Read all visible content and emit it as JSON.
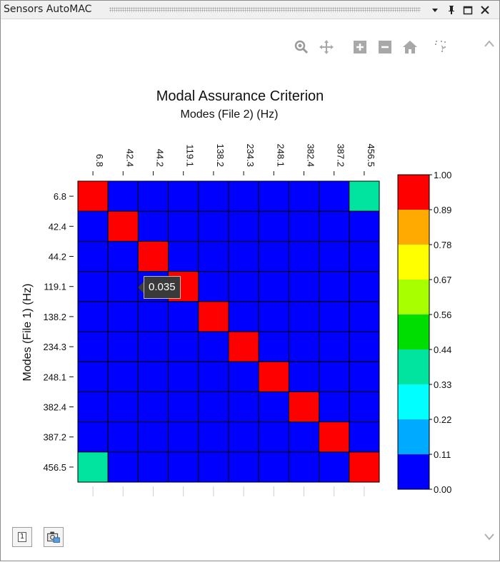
{
  "window": {
    "title": "Sensors AutoMAC",
    "buttons": [
      "dropdown-icon",
      "pin-icon",
      "maximize-icon",
      "close-icon"
    ]
  },
  "toolbar": {
    "icons": [
      "zoom-icon",
      "pan-icon",
      "zoom-in-icon",
      "zoom-out-icon",
      "home-icon",
      "select-icon"
    ]
  },
  "tooltip": {
    "text": "0.035"
  },
  "bottom_buttons": {
    "page_label": "1"
  },
  "colors": {
    "low": "#0000ff",
    "high": "#ff0000",
    "scale": [
      "#0000ff",
      "#00aaff",
      "#00ffff",
      "#00e4a0",
      "#00dd00",
      "#a8ff00",
      "#ffff00",
      "#ffaa00",
      "#ffa800",
      "#ff0000"
    ]
  },
  "chart_data": {
    "type": "heatmap",
    "title": "Modal Assurance Criterion",
    "xlabel": "Modes (File 2) (Hz)",
    "ylabel": "Modes (File 1) (Hz)",
    "x": [
      "6.8",
      "42.4",
      "44.2",
      "119.1",
      "138.2",
      "234.3",
      "248.1",
      "382.4",
      "387.2",
      "456.5"
    ],
    "y": [
      "6.8",
      "42.4",
      "44.2",
      "119.1",
      "138.2",
      "234.3",
      "248.1",
      "382.4",
      "387.2",
      "456.5"
    ],
    "values": [
      [
        1.0,
        0.02,
        0.02,
        0.02,
        0.02,
        0.02,
        0.02,
        0.02,
        0.02,
        0.4
      ],
      [
        0.02,
        1.0,
        0.02,
        0.02,
        0.02,
        0.02,
        0.02,
        0.02,
        0.02,
        0.02
      ],
      [
        0.02,
        0.02,
        1.0,
        0.02,
        0.02,
        0.02,
        0.02,
        0.02,
        0.02,
        0.02
      ],
      [
        0.02,
        0.02,
        0.035,
        1.0,
        0.02,
        0.02,
        0.02,
        0.02,
        0.02,
        0.02
      ],
      [
        0.02,
        0.02,
        0.02,
        0.02,
        1.0,
        0.02,
        0.02,
        0.02,
        0.02,
        0.02
      ],
      [
        0.02,
        0.02,
        0.02,
        0.02,
        0.02,
        1.0,
        0.02,
        0.02,
        0.02,
        0.02
      ],
      [
        0.02,
        0.02,
        0.02,
        0.02,
        0.02,
        0.02,
        1.0,
        0.02,
        0.02,
        0.02
      ],
      [
        0.02,
        0.02,
        0.02,
        0.02,
        0.02,
        0.02,
        0.02,
        1.0,
        0.02,
        0.02
      ],
      [
        0.02,
        0.02,
        0.02,
        0.02,
        0.02,
        0.02,
        0.02,
        0.02,
        1.0,
        0.02
      ],
      [
        0.4,
        0.02,
        0.02,
        0.02,
        0.02,
        0.02,
        0.02,
        0.02,
        0.02,
        1.0
      ]
    ],
    "colorbar": {
      "ticks": [
        "1.00",
        "0.89",
        "0.78",
        "0.67",
        "0.56",
        "0.44",
        "0.33",
        "0.22",
        "0.11",
        "0.00"
      ],
      "colors": [
        "#ff0000",
        "#ffaa00",
        "#ffff00",
        "#a8ff00",
        "#00dd00",
        "#00e4a0",
        "#00ffff",
        "#00aaff",
        "#0000ff"
      ],
      "range": [
        0,
        1
      ]
    }
  }
}
